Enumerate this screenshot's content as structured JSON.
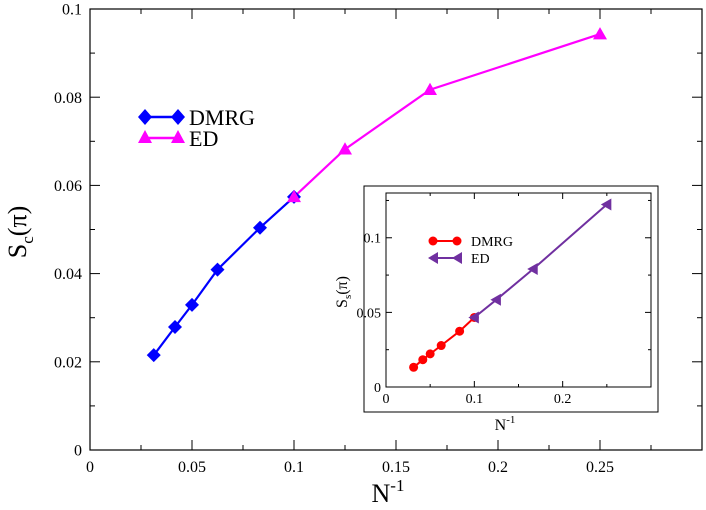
{
  "chart_data": [
    {
      "type": "line",
      "role": "main",
      "xlabel_base": "N",
      "xlabel_sup": "-1",
      "ylabel_base": "S",
      "ylabel_sub": "c",
      "ylabel_tail": "(π)",
      "xlim": [
        0,
        0.3
      ],
      "ylim": [
        0,
        0.1
      ],
      "x_ticks": [
        0,
        0.05,
        0.1,
        0.15,
        0.2,
        0.25
      ],
      "x_tick_labels": [
        "0",
        "0.05",
        "0.1",
        "0.15",
        "0.2",
        "0.25"
      ],
      "y_ticks": [
        0,
        0.02,
        0.04,
        0.06,
        0.08,
        0.1
      ],
      "y_tick_labels": [
        "0",
        "0.02",
        "0.04",
        "0.06",
        "0.08",
        "0.1"
      ],
      "legend_position": "upper-left",
      "series": [
        {
          "name": "DMRG",
          "color": "#0000ff",
          "marker": "diamond",
          "x": [
            0.03125,
            0.04167,
            0.05,
            0.0625,
            0.08333,
            0.1
          ],
          "y": [
            0.0215,
            0.0279,
            0.0329,
            0.0409,
            0.0504,
            0.0574
          ]
        },
        {
          "name": "ED",
          "color": "#ff00ff",
          "marker": "triangle-up",
          "x": [
            0.1,
            0.125,
            0.16667,
            0.25
          ],
          "y": [
            0.0574,
            0.0682,
            0.0817,
            0.0943
          ]
        }
      ]
    },
    {
      "type": "line",
      "role": "inset",
      "xlabel_base": "N",
      "xlabel_sup": "-1",
      "ylabel_base": "S",
      "ylabel_sub": "s",
      "ylabel_tail": "(π)",
      "xlim": [
        0,
        0.3
      ],
      "ylim": [
        0,
        0.13
      ],
      "x_ticks": [
        0,
        0.1,
        0.2
      ],
      "x_tick_labels": [
        "0",
        "0.1",
        "0.2"
      ],
      "y_ticks": [
        0,
        0.05,
        0.1
      ],
      "y_tick_labels": [
        "0",
        "0.05",
        "0.1"
      ],
      "legend_position": "upper-left",
      "series": [
        {
          "name": "DMRG",
          "color": "#ff0000",
          "marker": "circle",
          "x": [
            0.03125,
            0.04167,
            0.05,
            0.0625,
            0.08333,
            0.1
          ],
          "y": [
            0.0132,
            0.0183,
            0.0222,
            0.0278,
            0.0374,
            0.0466
          ]
        },
        {
          "name": "ED",
          "color": "#7030a0",
          "marker": "triangle-left",
          "x": [
            0.1,
            0.125,
            0.16667,
            0.25
          ],
          "y": [
            0.0466,
            0.0585,
            0.0791,
            0.1223
          ]
        }
      ]
    }
  ]
}
